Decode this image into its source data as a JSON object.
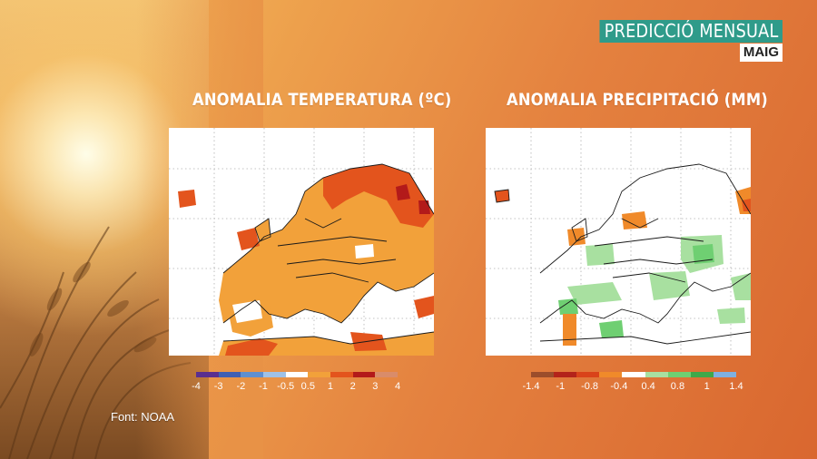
{
  "badge": {
    "title": "PREDICCIÓ MENSUAL",
    "month": "MAIG"
  },
  "panels": [
    {
      "title": "ANOMALIA TEMPERATURA (ºC)",
      "legend": {
        "colors": [
          "#5a2f8f",
          "#3f5fb3",
          "#5f8fd0",
          "#9fc1e6",
          "#ffffff",
          "#f2a13a",
          "#e3541d",
          "#b31a1a",
          "#d98c6a"
        ],
        "labels": [
          "-4",
          "-3",
          "-2",
          "-1",
          "-0.5",
          "0.5",
          "1",
          "2",
          "3",
          "4"
        ]
      }
    },
    {
      "title": "ANOMALIA PRECIPITACIÓ (MM)",
      "legend": {
        "colors": [
          "#9b4d2b",
          "#b3231a",
          "#d9431a",
          "#f08a2a",
          "#ffffff",
          "#a8e0a0",
          "#6fcf72",
          "#3fa84a",
          "#7fb0e0"
        ],
        "labels": [
          "-1.4",
          "-1",
          "-0.8",
          "-0.4",
          "0.4",
          "0.8",
          "1",
          "1.4"
        ]
      }
    }
  ],
  "source": "Font: NOAA",
  "icons": {
    "background": "sunlit-wheat-backdrop"
  }
}
